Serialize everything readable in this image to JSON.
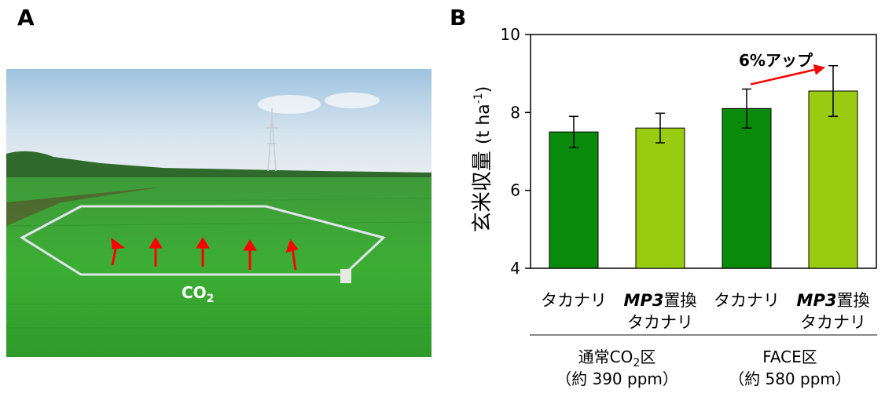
{
  "panel_a": {
    "label": "A",
    "photo_caption": "CO",
    "photo_caption_sub": "2"
  },
  "chart_data": {
    "type": "bar",
    "panel_label": "B",
    "ylabel": "玄米収量",
    "yunit_main": "(t ha",
    "yunit_sup": "-1",
    "yunit_end": ")",
    "ylim": [
      4,
      10
    ],
    "yticks": [
      4,
      6,
      8,
      10
    ],
    "grid": false,
    "categories": [
      {
        "lines": [
          "タカナリ"
        ],
        "italic_prefix": ""
      },
      {
        "lines": [
          "置換",
          "タカナリ"
        ],
        "italic_prefix": "MP3"
      },
      {
        "lines": [
          "タカナリ"
        ],
        "italic_prefix": ""
      },
      {
        "lines": [
          "置換",
          "タカナリ"
        ],
        "italic_prefix": "MP3"
      }
    ],
    "values": [
      7.5,
      7.6,
      8.1,
      8.55
    ],
    "error": [
      0.4,
      0.38,
      0.5,
      0.65
    ],
    "colors": [
      "#0a8a0a",
      "#99cc11",
      "#0a8a0a",
      "#99cc11"
    ],
    "groups": [
      {
        "name_pre": "通常CO",
        "name_sub": "2",
        "name_post": "区",
        "detail": "（約 390 ppm）"
      },
      {
        "name_pre": "FACE区",
        "name_sub": "",
        "name_post": "",
        "detail": "（約 580 ppm）"
      }
    ],
    "annotation": {
      "text": "6%アップ",
      "arrow_color": "#ff0000"
    }
  }
}
